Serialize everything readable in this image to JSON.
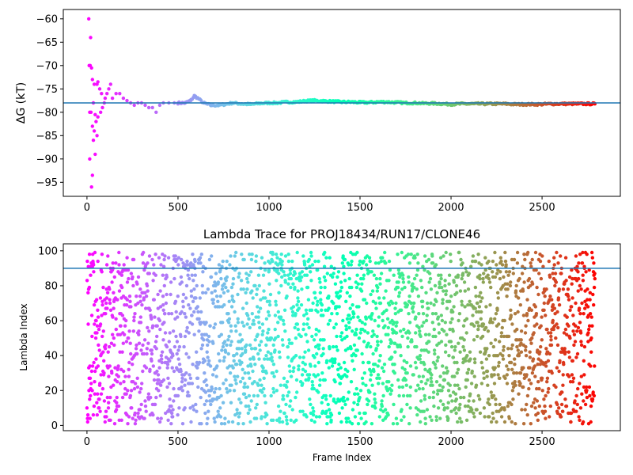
{
  "chart_data": [
    {
      "type": "scatter",
      "title": "",
      "xlabel": "",
      "ylabel": "ΔG (kT)",
      "xlim": [
        -130,
        2930
      ],
      "ylim": [
        -98,
        -58
      ],
      "xticks": [
        0,
        500,
        1000,
        1500,
        2000,
        2500
      ],
      "yticks": [
        -95,
        -90,
        -85,
        -80,
        -75,
        -70,
        -65,
        -60
      ],
      "hline": -78,
      "colormap": "rainbow",
      "points": [
        [
          10,
          -60
        ],
        [
          20,
          -64
        ],
        [
          12,
          -70
        ],
        [
          18,
          -70
        ],
        [
          25,
          -70.5
        ],
        [
          30,
          -73
        ],
        [
          40,
          -74
        ],
        [
          55,
          -74
        ],
        [
          60,
          -73.5
        ],
        [
          70,
          -75
        ],
        [
          80,
          -76
        ],
        [
          15,
          -80
        ],
        [
          22,
          -80
        ],
        [
          35,
          -78
        ],
        [
          45,
          -80.5
        ],
        [
          50,
          -82
        ],
        [
          60,
          -81
        ],
        [
          75,
          -80
        ],
        [
          85,
          -79
        ],
        [
          95,
          -78
        ],
        [
          100,
          -77
        ],
        [
          110,
          -76
        ],
        [
          120,
          -75
        ],
        [
          130,
          -74
        ],
        [
          30,
          -83
        ],
        [
          40,
          -84
        ],
        [
          55,
          -85
        ],
        [
          35,
          -86
        ],
        [
          45,
          -89
        ],
        [
          15,
          -90
        ],
        [
          30,
          -93.5
        ],
        [
          25,
          -96
        ],
        [
          140,
          -77
        ],
        [
          160,
          -76
        ],
        [
          180,
          -76
        ],
        [
          200,
          -77
        ],
        [
          220,
          -77.5
        ],
        [
          240,
          -78
        ],
        [
          260,
          -78.5
        ],
        [
          280,
          -78
        ],
        [
          300,
          -78
        ],
        [
          320,
          -78.5
        ],
        [
          340,
          -79
        ],
        [
          360,
          -79
        ],
        [
          380,
          -80
        ],
        [
          400,
          -78.5
        ],
        [
          420,
          -78
        ],
        [
          450,
          -78
        ],
        [
          480,
          -78
        ],
        [
          500,
          -78
        ],
        [
          540,
          -78
        ],
        [
          570,
          -77.5
        ],
        [
          590,
          -76.5
        ],
        [
          610,
          -77
        ],
        [
          640,
          -78
        ],
        [
          680,
          -78.5
        ],
        [
          720,
          -78.5
        ],
        [
          760,
          -78.3
        ],
        [
          800,
          -78
        ],
        [
          850,
          -78.2
        ],
        [
          900,
          -78.3
        ],
        [
          950,
          -78.1
        ],
        [
          1000,
          -78
        ],
        [
          1050,
          -78
        ],
        [
          1100,
          -77.8
        ],
        [
          1150,
          -77.8
        ],
        [
          1200,
          -77.6
        ],
        [
          1250,
          -77.5
        ],
        [
          1300,
          -77.6
        ],
        [
          1350,
          -77.7
        ],
        [
          1400,
          -77.8
        ],
        [
          1450,
          -77.8
        ],
        [
          1500,
          -77.9
        ],
        [
          1550,
          -77.9
        ],
        [
          1600,
          -77.8
        ],
        [
          1650,
          -77.8
        ],
        [
          1700,
          -77.9
        ],
        [
          1750,
          -78
        ],
        [
          1800,
          -78
        ],
        [
          1850,
          -78.1
        ],
        [
          1900,
          -78.1
        ],
        [
          1950,
          -78.2
        ],
        [
          2000,
          -78.3
        ],
        [
          2050,
          -78.2
        ],
        [
          2100,
          -78.2
        ],
        [
          2150,
          -78.2
        ],
        [
          2200,
          -78.2
        ],
        [
          2250,
          -78.2
        ],
        [
          2300,
          -78.2
        ],
        [
          2350,
          -78.3
        ],
        [
          2400,
          -78.3
        ],
        [
          2450,
          -78.3
        ],
        [
          2500,
          -78.3
        ],
        [
          2550,
          -78.2
        ],
        [
          2600,
          -78.2
        ],
        [
          2650,
          -78.2
        ],
        [
          2700,
          -78.2
        ],
        [
          2750,
          -78.2
        ],
        [
          2790,
          -78.2
        ]
      ]
    },
    {
      "type": "scatter",
      "title": "Lambda Trace for PROJ18434/RUN17/CLONE46",
      "xlabel": "Frame Index",
      "ylabel": "Lambda Index",
      "xlim": [
        -130,
        2930
      ],
      "ylim": [
        -3,
        104
      ],
      "xticks": [
        0,
        500,
        1000,
        1500,
        2000,
        2500
      ],
      "yticks": [
        0,
        20,
        40,
        60,
        80,
        100
      ],
      "hline": 90,
      "colormap": "rainbow",
      "point_count": 2800,
      "x_range": [
        0,
        2790
      ],
      "y_range": [
        1,
        99
      ],
      "note_distribution": "uniform random lambda indices across all frames"
    }
  ]
}
